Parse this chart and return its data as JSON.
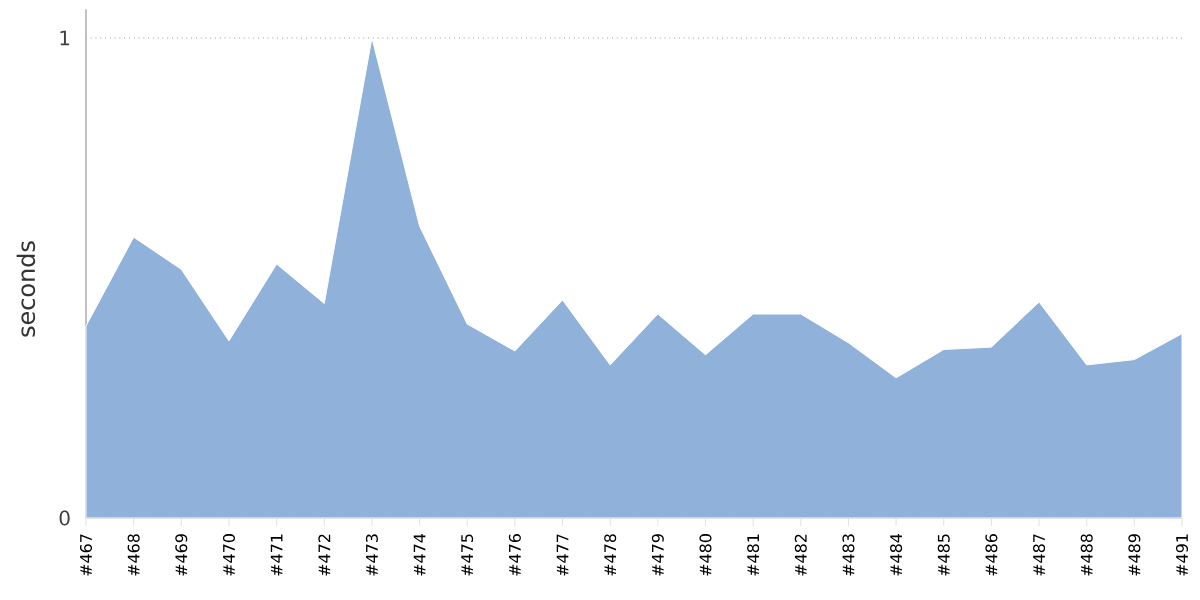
{
  "chart_data": {
    "type": "area",
    "ylabel": "seconds",
    "categories": [
      "#467",
      "#468",
      "#469",
      "#470",
      "#471",
      "#472",
      "#473",
      "#474",
      "#475",
      "#476",
      "#477",
      "#478",
      "#479",
      "#480",
      "#481",
      "#482",
      "#483",
      "#484",
      "#485",
      "#486",
      "#487",
      "#488",
      "#489",
      "#491"
    ],
    "series": [
      {
        "color": "#8fb1da",
        "values": [
          0.4,
          0.585,
          0.518,
          0.369,
          0.529,
          0.447,
          1.0,
          0.608,
          0.404,
          0.348,
          0.454,
          0.319,
          0.425,
          0.34,
          0.425,
          0.425,
          0.365,
          0.292,
          0.351,
          0.356,
          0.45,
          0.319,
          0.33,
          0.384
        ]
      }
    ],
    "ylim": [
      0,
      1.06
    ],
    "yticks": [
      0,
      1
    ],
    "grid": "y"
  }
}
